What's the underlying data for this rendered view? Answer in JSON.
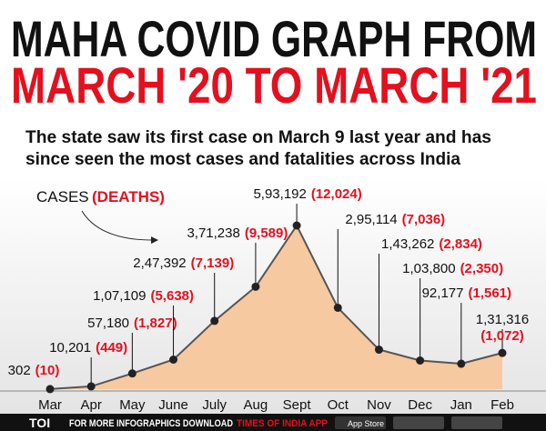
{
  "chart_data": {
    "type": "area",
    "title": "MAHA COVID GRAPH FROM",
    "title_line2": "MARCH '20 TO MARCH '21",
    "subtitle": "The state saw its first case on March 9 last year and has",
    "subtitle_line2": "since seen the most cases and fatalities across India",
    "legend_cases": "CASES",
    "legend_deaths": "(DEATHS)",
    "categories": [
      "Mar",
      "Apr",
      "May",
      "June",
      "July",
      "Aug",
      "Sept",
      "Oct",
      "Nov",
      "Dec",
      "Jan",
      "Feb"
    ],
    "series": [
      {
        "name": "Cases",
        "color": "#f7c9a0",
        "values": [
          302,
          10201,
          57180,
          107109,
          247392,
          371238,
          593192,
          295114,
          143262,
          103800,
          92177,
          131316
        ],
        "value_labels": [
          "302",
          "10,201",
          "57,180",
          "1,07,109",
          "2,47,392",
          "3,71,238",
          "5,93,192",
          "2,95,114",
          "1,43,262",
          "1,03,800",
          "92,177",
          "1,31,316"
        ]
      },
      {
        "name": "Deaths",
        "color": "#e3101e",
        "values": [
          10,
          449,
          1827,
          5638,
          7139,
          9589,
          12024,
          7036,
          2834,
          2350,
          1561,
          1072
        ],
        "value_labels": [
          "(10)",
          "(449)",
          "(1,827)",
          "(5,638)",
          "(7,139)",
          "(9,589)",
          "(12,024)",
          "(7,036)",
          "(2,834)",
          "(2,350)",
          "(1,561)",
          "(1,072)"
        ]
      }
    ],
    "footer": {
      "logo": "TOI",
      "text": "FOR MORE INFOGRAPHICS DOWNLOAD",
      "app": "TIMES OF INDIA APP",
      "store": "App Store"
    }
  }
}
